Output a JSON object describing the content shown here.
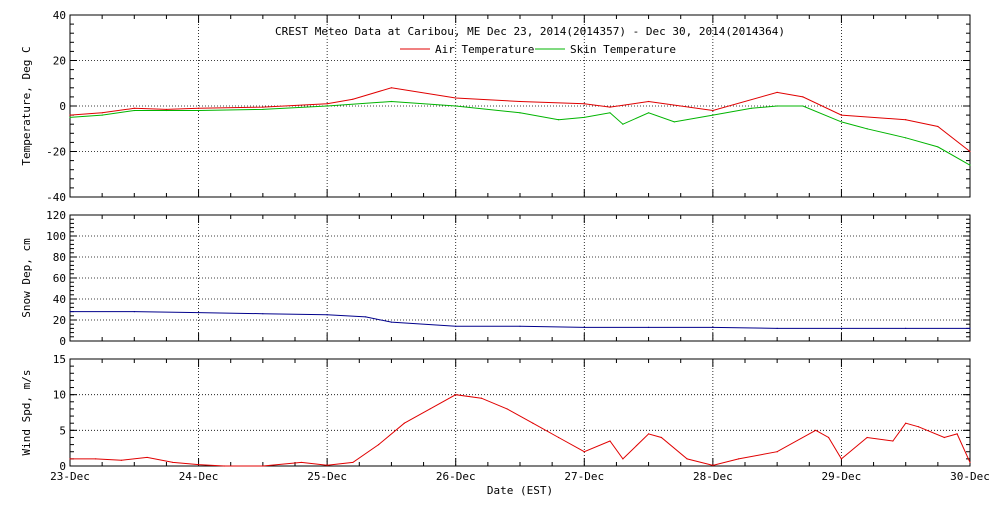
{
  "title": "CREST Meteo Data at Caribou, ME   Dec 23, 2014(2014357) - Dec 30, 2014(2014364)",
  "x_axis_label": "Date (EST)",
  "colors": {
    "air": "#e00000",
    "skin": "#00b400",
    "snow": "#00008c",
    "wind": "#e00000",
    "axis": "#000000"
  },
  "chart_data": [
    {
      "type": "line",
      "ylabel": "Temperature, Deg C",
      "ylim": [
        -40,
        40
      ],
      "yticks": [
        -40,
        -20,
        0,
        20,
        40
      ],
      "xlim": [
        0,
        7
      ],
      "xticks": [
        "23-Dec",
        "24-Dec",
        "25-Dec",
        "26-Dec",
        "27-Dec",
        "28-Dec",
        "29-Dec",
        "30-Dec"
      ],
      "grid": true,
      "legend_position": "top-center",
      "series": [
        {
          "name": "Air Temperature",
          "color_key": "air",
          "x": [
            0,
            0.25,
            0.5,
            0.75,
            1.0,
            1.5,
            2.0,
            2.2,
            2.5,
            3.0,
            3.5,
            4.0,
            4.2,
            4.5,
            5.0,
            5.5,
            5.7,
            6.0,
            6.5,
            6.75,
            7.0
          ],
          "y": [
            -4,
            -3,
            -1,
            -1.5,
            -1,
            -0.5,
            1,
            3,
            8,
            3.5,
            2,
            1,
            -0.5,
            2,
            -2,
            6,
            4,
            -4,
            -6,
            -9,
            -20
          ]
        },
        {
          "name": "Skin Temperature",
          "color_key": "skin",
          "x": [
            0,
            0.25,
            0.5,
            0.75,
            1.0,
            1.5,
            2.0,
            2.5,
            3.0,
            3.5,
            3.8,
            4.0,
            4.2,
            4.3,
            4.5,
            4.7,
            5.0,
            5.3,
            5.5,
            5.7,
            6.0,
            6.2,
            6.5,
            6.75,
            7.0
          ],
          "y": [
            -5,
            -4,
            -2,
            -2,
            -2,
            -1.5,
            0,
            2,
            0,
            -3,
            -6,
            -5,
            -3,
            -8,
            -3,
            -7,
            -4,
            -1,
            0,
            0,
            -7,
            -10,
            -14,
            -18,
            -26
          ]
        }
      ]
    },
    {
      "type": "line",
      "ylabel": "Snow Dep, cm",
      "ylim": [
        0,
        120
      ],
      "yticks": [
        0,
        20,
        40,
        60,
        80,
        100,
        120
      ],
      "xlim": [
        0,
        7
      ],
      "grid": true,
      "series": [
        {
          "color_key": "snow",
          "x": [
            0,
            0.5,
            1.0,
            1.5,
            2.0,
            2.3,
            2.5,
            3.0,
            3.5,
            4.0,
            4.5,
            5.0,
            5.5,
            6.0,
            6.5,
            7.0
          ],
          "y": [
            28,
            28,
            27,
            26,
            25,
            23,
            18,
            14,
            14,
            13,
            13,
            13,
            12,
            12,
            12,
            12
          ]
        }
      ]
    },
    {
      "type": "line",
      "ylabel": "Wind Spd, m/s",
      "ylim": [
        0,
        15
      ],
      "yticks": [
        0,
        5,
        10,
        15
      ],
      "xlim": [
        0,
        7
      ],
      "grid": true,
      "series": [
        {
          "color_key": "wind",
          "x": [
            0,
            0.2,
            0.4,
            0.6,
            0.8,
            1.0,
            1.2,
            1.5,
            1.8,
            2.0,
            2.2,
            2.4,
            2.6,
            2.8,
            3.0,
            3.2,
            3.4,
            3.6,
            3.8,
            4.0,
            4.2,
            4.3,
            4.5,
            4.6,
            4.8,
            5.0,
            5.2,
            5.5,
            5.8,
            5.9,
            6.0,
            6.2,
            6.4,
            6.5,
            6.6,
            6.8,
            6.9,
            7.0
          ],
          "y": [
            1,
            1,
            0.8,
            1.2,
            0.5,
            0.2,
            0,
            0,
            0.5,
            0.1,
            0.5,
            3,
            6,
            8,
            10,
            9.5,
            8,
            6,
            4,
            2,
            3.5,
            1,
            4.5,
            4,
            1,
            0.1,
            1,
            2,
            5,
            4,
            1,
            4,
            3.5,
            6,
            5.5,
            4,
            4.5,
            0.5
          ]
        }
      ]
    }
  ]
}
